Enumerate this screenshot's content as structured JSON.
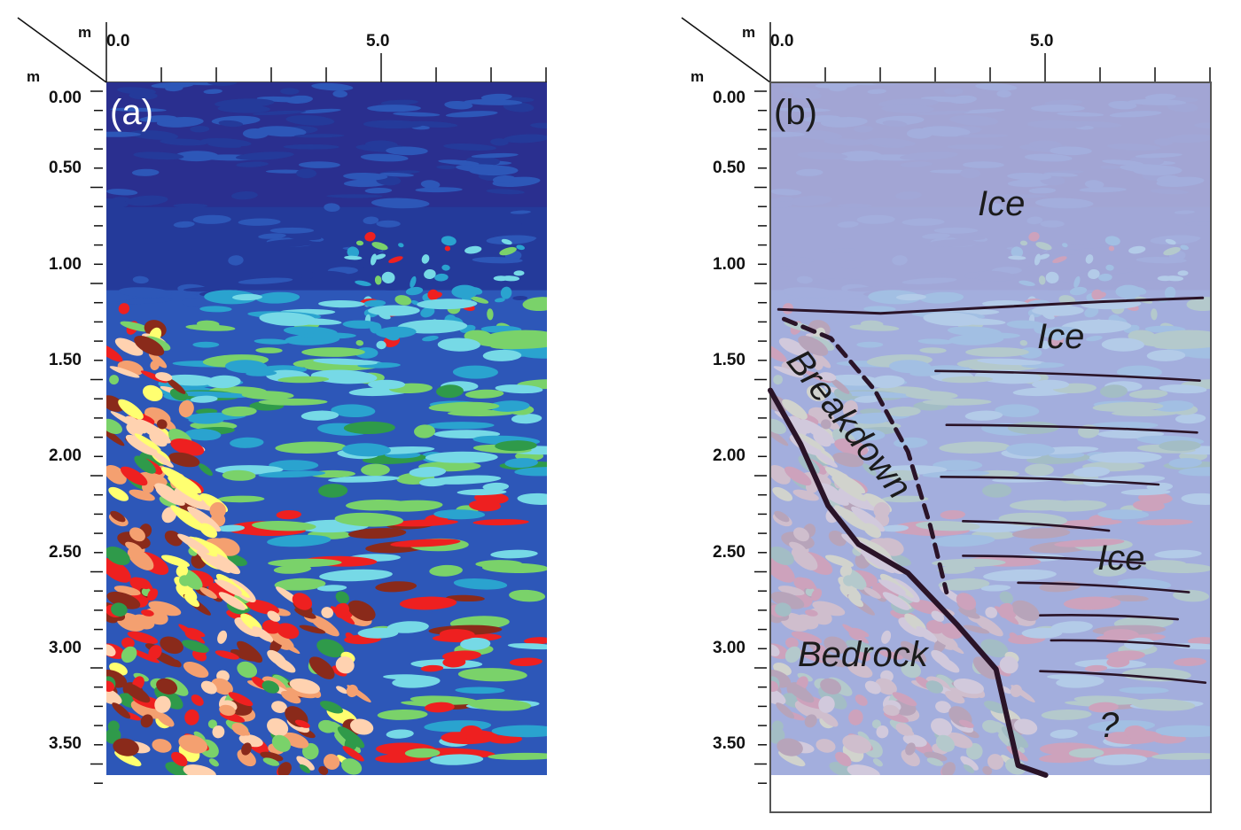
{
  "chart_data": [
    {
      "type": "heatmap",
      "panel_label": "(a)",
      "x_unit": "m",
      "y_unit": "m",
      "x_tick_labels": [
        "0.0",
        "5.0"
      ],
      "y_tick_labels": [
        "0.00",
        "0.50",
        "1.00",
        "1.50",
        "2.00",
        "2.50",
        "3.00",
        "3.50"
      ],
      "xlim": [
        0,
        8
      ],
      "ylim": [
        0,
        3.75
      ],
      "y_inverted": true,
      "colormap": [
        "#2a2f8f",
        "#243a9a",
        "#2d57b8",
        "#2aa3cf",
        "#76d9e6",
        "#2f9a4a",
        "#7ad26a",
        "#ee2020",
        "#8a2a1a",
        "#f4a070",
        "#ffd2b0",
        "#ffff70"
      ],
      "features": [
        {
          "kind": "low-amplitude ice zone",
          "x": [
            0,
            8
          ],
          "depth": [
            0,
            1.2
          ]
        },
        {
          "kind": "strong reflections",
          "x": [
            0,
            2.8
          ],
          "depth": [
            1.3,
            3.7
          ]
        },
        {
          "kind": "layered reflectors",
          "x": [
            2.8,
            8
          ],
          "depth": [
            1.3,
            3.7
          ]
        },
        {
          "kind": "no data",
          "x": [
            0,
            8
          ],
          "depth": [
            3.55,
            3.75
          ]
        }
      ]
    },
    {
      "type": "heatmap",
      "panel_label": "(b)",
      "x_unit": "m",
      "y_unit": "m",
      "x_tick_labels": [
        "0.0",
        "5.0"
      ],
      "y_tick_labels": [
        "0.00",
        "0.50",
        "1.00",
        "1.50",
        "2.00",
        "2.50",
        "3.00",
        "3.50"
      ],
      "xlim": [
        0,
        8
      ],
      "ylim": [
        0,
        3.75
      ],
      "y_inverted": true,
      "overlay_color": "#c4c6e8",
      "interpretation_labels": [
        "Ice",
        "Ice",
        "Ice",
        "Breakdown",
        "Bedrock",
        "?"
      ],
      "interpretation_lines": [
        {
          "name": "ice-base",
          "style": "solid",
          "points": [
            [
              0.15,
              1.18
            ],
            [
              2,
              1.2
            ],
            [
              4,
              1.17
            ],
            [
              6,
              1.14
            ],
            [
              7.85,
              1.12
            ]
          ]
        },
        {
          "name": "breakdown-boundary",
          "style": "dashed",
          "points": [
            [
              0.25,
              1.23
            ],
            [
              1.1,
              1.33
            ],
            [
              1.9,
              1.6
            ],
            [
              2.5,
              1.92
            ],
            [
              2.9,
              2.3
            ],
            [
              3.2,
              2.65
            ]
          ]
        },
        {
          "name": "bedrock-boundary",
          "style": "thick",
          "points": [
            [
              0,
              1.6
            ],
            [
              0.55,
              1.88
            ],
            [
              1.05,
              2.2
            ],
            [
              1.6,
              2.4
            ],
            [
              2.5,
              2.55
            ],
            [
              3.4,
              2.82
            ],
            [
              4.1,
              3.05
            ],
            [
              4.5,
              3.55
            ],
            [
              5.0,
              3.6
            ]
          ]
        }
      ],
      "reflectors": [
        {
          "x": [
            3.0,
            7.8
          ],
          "depth": [
            1.5,
            1.55
          ]
        },
        {
          "x": [
            3.2,
            7.75
          ],
          "depth": [
            1.78,
            1.82
          ]
        },
        {
          "x": [
            3.1,
            7.05
          ],
          "depth": [
            2.05,
            2.09
          ]
        },
        {
          "x": [
            3.5,
            6.15
          ],
          "depth": [
            2.28,
            2.33
          ]
        },
        {
          "x": [
            3.5,
            6.8
          ],
          "depth": [
            2.46,
            2.5
          ]
        },
        {
          "x": [
            4.5,
            7.6
          ],
          "depth": [
            2.6,
            2.65
          ]
        },
        {
          "x": [
            4.9,
            7.4
          ],
          "depth": [
            2.77,
            2.79
          ]
        },
        {
          "x": [
            5.1,
            7.6
          ],
          "depth": [
            2.9,
            2.93
          ]
        },
        {
          "x": [
            4.9,
            7.9
          ],
          "depth": [
            3.06,
            3.12
          ]
        }
      ]
    }
  ]
}
